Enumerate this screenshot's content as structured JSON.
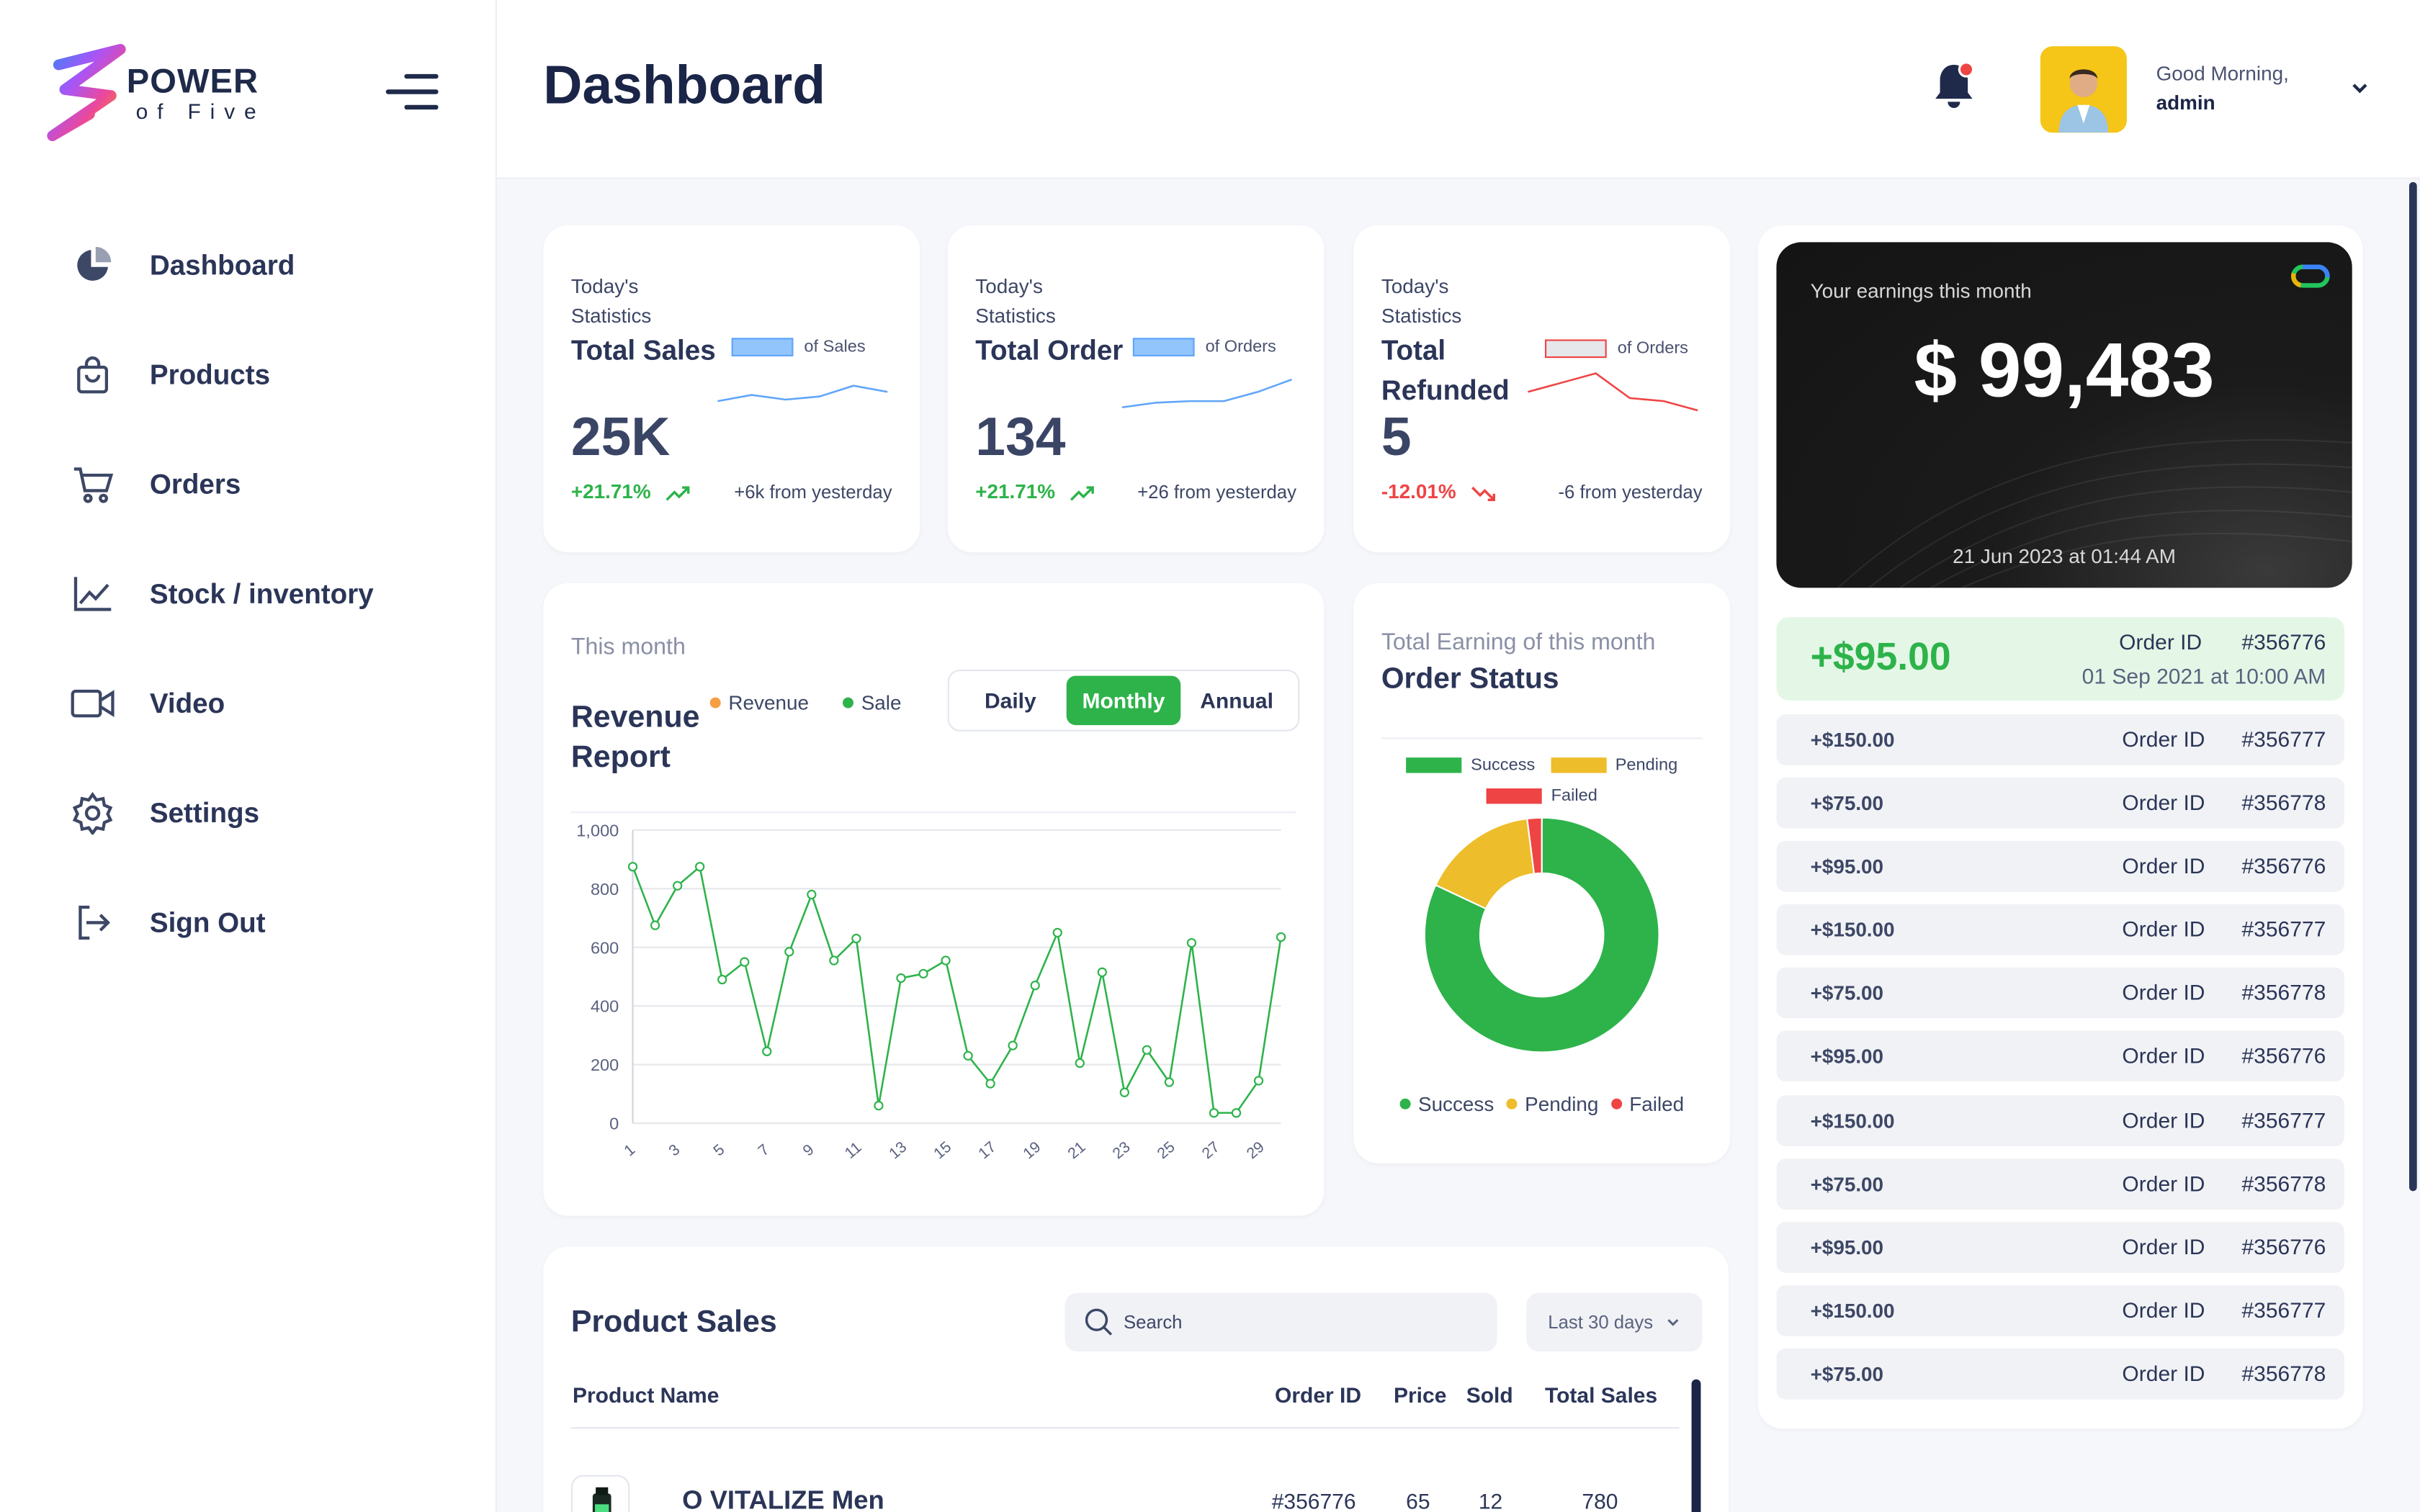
{
  "brand": {
    "line1": "POWER",
    "line2": "of Five"
  },
  "sidebar": {
    "items": [
      {
        "label": "Dashboard",
        "icon": "pie-chart-icon"
      },
      {
        "label": "Products",
        "icon": "shopping-bag-icon"
      },
      {
        "label": "Orders",
        "icon": "cart-icon"
      },
      {
        "label": "Stock / inventory",
        "icon": "line-chart-icon"
      },
      {
        "label": "Video",
        "icon": "video-icon"
      },
      {
        "label": "Settings",
        "icon": "gear-icon"
      },
      {
        "label": "Sign Out",
        "icon": "sign-out-icon"
      }
    ]
  },
  "header": {
    "title": "Dashboard",
    "greeting": "Good Morning,",
    "user": "admin"
  },
  "stats": [
    {
      "small": "Today's Statistics",
      "title": "Total Sales",
      "value": "25K",
      "pct": "+21.71%",
      "from": "+6k from yesterday",
      "legend": "of Sales",
      "trend": "up",
      "spark": [
        18,
        14,
        17,
        15,
        8,
        12
      ]
    },
    {
      "small": "Today's Statistics",
      "title": "Total Order",
      "value": "134",
      "pct": "+21.71%",
      "from": "+26 from yesterday",
      "legend": "of Orders",
      "trend": "up",
      "spark": [
        22,
        19,
        18,
        18,
        12,
        4
      ]
    },
    {
      "small": "Today's Statistics",
      "title": "Total Refunded",
      "value": "5",
      "pct": "-12.01%",
      "from": "-6 from yesterday",
      "legend": "of Orders",
      "trend": "down",
      "spark": [
        12,
        6,
        0,
        16,
        18,
        24
      ]
    }
  ],
  "revenue": {
    "small": "This month",
    "title": "Revenue Report",
    "legend": {
      "revenue": "Revenue",
      "sale": "Sale"
    },
    "tabs": [
      {
        "label": "Daily"
      },
      {
        "label": "Monthly"
      },
      {
        "label": "Annual"
      }
    ],
    "active_tab": 1
  },
  "order_status": {
    "small": "Total Earning of this month",
    "title": "Order Status",
    "legend": {
      "success": "Success",
      "pending": "Pending",
      "failed": "Failed"
    }
  },
  "chart_data": [
    {
      "type": "line",
      "title": "Revenue Report",
      "x": [
        1,
        2,
        3,
        4,
        5,
        6,
        7,
        8,
        9,
        10,
        11,
        12,
        13,
        14,
        15,
        16,
        17,
        18,
        19,
        20,
        21,
        22,
        23,
        24,
        25,
        26,
        27,
        28,
        29,
        30
      ],
      "xticks": [
        "1",
        "3",
        "5",
        "7",
        "9",
        "11",
        "13",
        "15",
        "17",
        "19",
        "21",
        "23",
        "25",
        "27",
        "29"
      ],
      "series": [
        {
          "name": "Sale",
          "color": "#2db34a",
          "values": [
            875,
            675,
            810,
            875,
            490,
            550,
            245,
            585,
            780,
            555,
            630,
            60,
            495,
            510,
            555,
            230,
            135,
            265,
            470,
            650,
            205,
            515,
            105,
            250,
            140,
            615,
            35,
            35,
            145,
            635
          ]
        }
      ],
      "ylim": [
        0,
        1000
      ],
      "yticks": [
        "0",
        "200",
        "400",
        "600",
        "800",
        "1,000"
      ],
      "grid": true
    },
    {
      "type": "pie",
      "title": "Order Status",
      "labels": [
        "Success",
        "Pending",
        "Failed"
      ],
      "values": [
        82,
        16,
        2
      ],
      "colors": [
        "#2db34a",
        "#eebd2b",
        "#ef4444"
      ]
    }
  ],
  "product_sales": {
    "title": "Product Sales",
    "search_placeholder": "Search",
    "range": "Last 30 days",
    "columns": {
      "name": "Product Name",
      "order": "Order ID",
      "price": "Price",
      "sold": "Sold",
      "total": "Total Sales"
    },
    "row": {
      "name": "O VITALIZE Men",
      "order": "#356776",
      "price": "65",
      "sold": "12",
      "total": "780"
    }
  },
  "earnings": {
    "label": "Your earnings this month",
    "amount": "$ 99,483",
    "date": "21 Jun 2023 at 01:44 AM",
    "featured": {
      "amount": "+$95.00",
      "order_label": "Order ID",
      "order_id": "#356776",
      "date": "01 Sep 2021 at 10:00 AM"
    },
    "order_label": "Order ID",
    "transactions": [
      {
        "amount": "+$150.00",
        "order_id": "#356777"
      },
      {
        "amount": "+$75.00",
        "order_id": "#356778"
      },
      {
        "amount": "+$95.00",
        "order_id": "#356776"
      },
      {
        "amount": "+$150.00",
        "order_id": "#356777"
      },
      {
        "amount": "+$75.00",
        "order_id": "#356778"
      },
      {
        "amount": "+$95.00",
        "order_id": "#356776"
      },
      {
        "amount": "+$150.00",
        "order_id": "#356777"
      },
      {
        "amount": "+$75.00",
        "order_id": "#356778"
      },
      {
        "amount": "+$95.00",
        "order_id": "#356776"
      },
      {
        "amount": "+$150.00",
        "order_id": "#356777"
      },
      {
        "amount": "+$75.00",
        "order_id": "#356778"
      }
    ]
  },
  "colors": {
    "accent": "#2db34a",
    "negative": "#ef4444",
    "navy": "#1f2a4a",
    "pending": "#eebd2b",
    "revenue_dot": "#f59e42"
  }
}
